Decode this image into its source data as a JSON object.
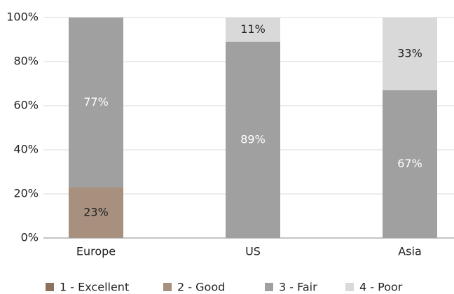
{
  "chart_data": {
    "type": "stacked_bar",
    "categories": [
      "Europe",
      "US",
      "Asia"
    ],
    "series": [
      {
        "name": "1 - Excellent",
        "color": "#8c7260",
        "values": [
          0,
          0,
          0
        ],
        "value_labels": [
          null,
          null,
          null
        ]
      },
      {
        "name": "2 - Good",
        "color": "#a8907f",
        "values": [
          23,
          0,
          0
        ],
        "value_labels": [
          "23%",
          null,
          null
        ]
      },
      {
        "name": "3 - Fair",
        "color": "#a0a0a0",
        "values": [
          77,
          89,
          67
        ],
        "value_labels": [
          "77%",
          "89%",
          "67%"
        ]
      },
      {
        "name": "4 - Poor",
        "color": "#d9d9d9",
        "values": [
          0,
          11,
          33
        ],
        "value_labels": [
          null,
          "11%",
          "33%"
        ]
      }
    ],
    "ylim": [
      0,
      100
    ],
    "yticks": [
      {
        "value": 0,
        "label": "0%"
      },
      {
        "value": 20,
        "label": "20%"
      },
      {
        "value": 40,
        "label": "40%"
      },
      {
        "value": 60,
        "label": "60%"
      },
      {
        "value": 80,
        "label": "80%"
      },
      {
        "value": 100,
        "label": "100%"
      }
    ],
    "grid": true,
    "legend": "bottom"
  }
}
